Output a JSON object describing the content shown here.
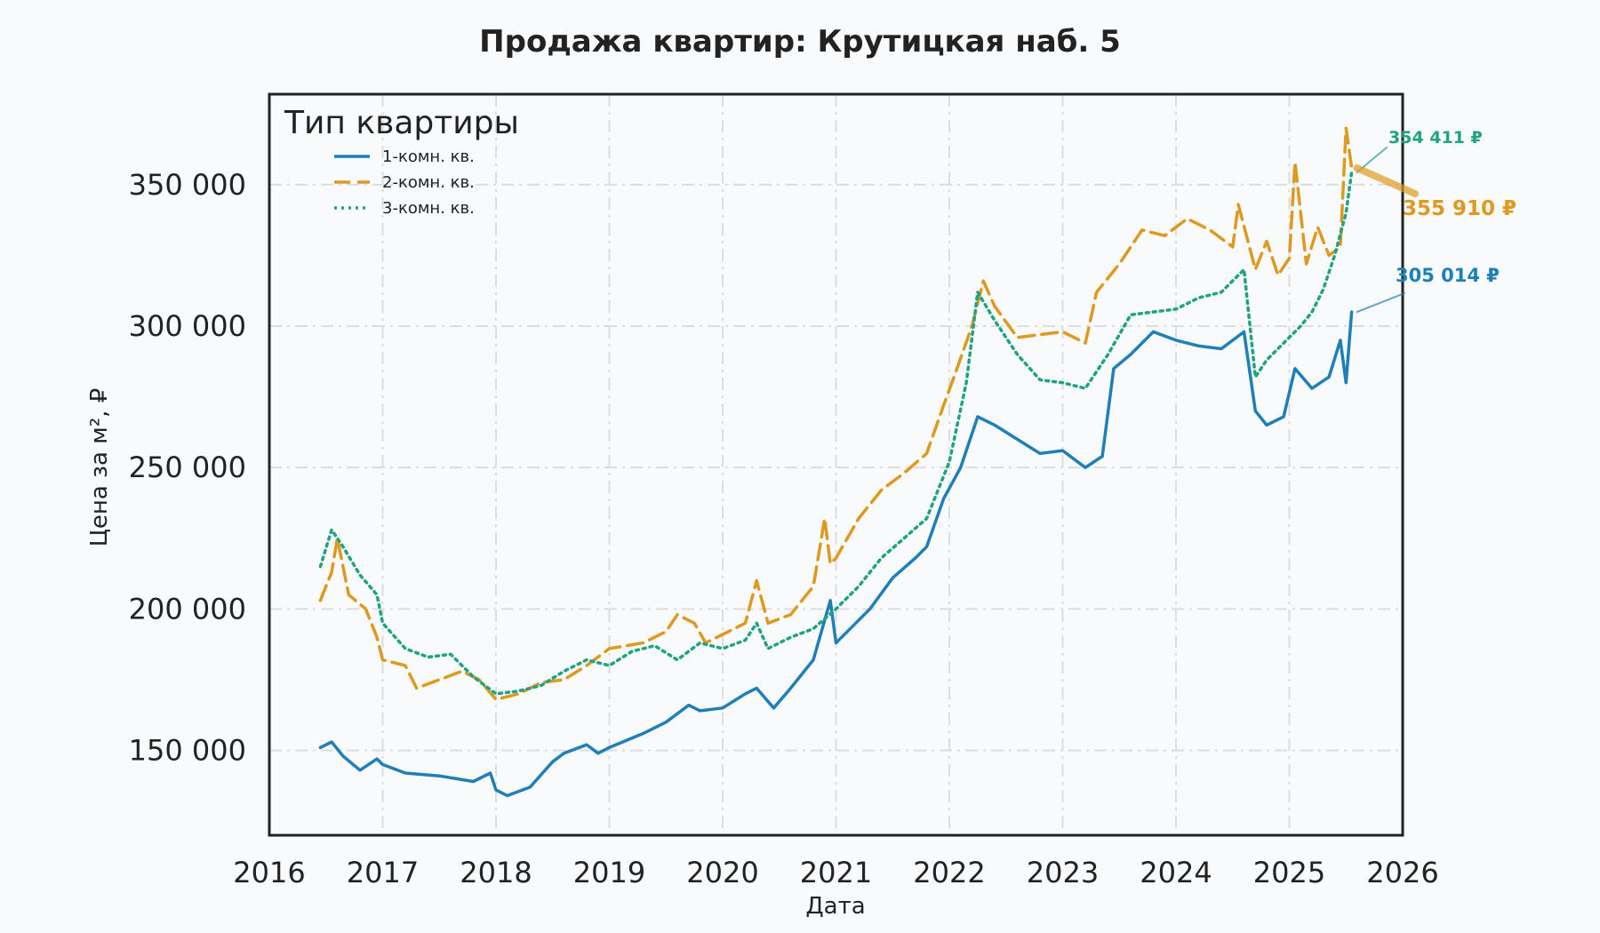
{
  "chart_data": {
    "type": "line",
    "title": "Продажа квартир: Крутицкая наб. 5",
    "xlabel": "Дата",
    "ylabel": "Цена за м², ₽",
    "xlim": [
      2016.0,
      2026.0
    ],
    "ylim": [
      120000,
      382000
    ],
    "x_ticks": [
      "2016",
      "2017",
      "2018",
      "2019",
      "2020",
      "2021",
      "2022",
      "2023",
      "2024",
      "2025",
      "2026"
    ],
    "y_ticks": [
      150000,
      200000,
      250000,
      300000,
      350000
    ],
    "y_tick_labels": [
      "150 000",
      "200 000",
      "250 000",
      "300 000",
      "350 000"
    ],
    "grid": true,
    "legend": {
      "title": "Тип квартиры",
      "position": "top-left"
    },
    "series": [
      {
        "name": "1-комн. кв.",
        "color": "#1f7fb8",
        "style": "solid",
        "x": [
          2016.45,
          2016.55,
          2016.65,
          2016.8,
          2016.95,
          2017.0,
          2017.2,
          2017.5,
          2017.8,
          2017.95,
          2018.0,
          2018.1,
          2018.3,
          2018.5,
          2018.6,
          2018.8,
          2018.9,
          2019.0,
          2019.3,
          2019.5,
          2019.7,
          2019.8,
          2020.0,
          2020.2,
          2020.3,
          2020.45,
          2020.6,
          2020.8,
          2020.95,
          2021.0,
          2021.1,
          2021.3,
          2021.5,
          2021.7,
          2021.8,
          2021.95,
          2022.1,
          2022.25,
          2022.4,
          2022.6,
          2022.8,
          2023.0,
          2023.2,
          2023.35,
          2023.45,
          2023.6,
          2023.8,
          2024.0,
          2024.2,
          2024.4,
          2024.6,
          2024.7,
          2024.8,
          2024.95,
          2025.05,
          2025.2,
          2025.35,
          2025.45,
          2025.5,
          2025.55
        ],
        "values": [
          151000,
          153000,
          148000,
          143000,
          147000,
          145000,
          142000,
          141000,
          139000,
          142000,
          136000,
          134000,
          137000,
          146000,
          149000,
          152000,
          149000,
          151000,
          156000,
          160000,
          166000,
          164000,
          165000,
          170000,
          172000,
          165000,
          172000,
          182000,
          203000,
          188000,
          192000,
          200000,
          211000,
          218000,
          222000,
          239000,
          250000,
          268000,
          265000,
          260000,
          255000,
          256000,
          250000,
          254000,
          285000,
          290000,
          298000,
          295000,
          293000,
          292000,
          298000,
          270000,
          265000,
          268000,
          285000,
          278000,
          282000,
          295000,
          280000,
          305014
        ]
      },
      {
        "name": "2-комн. кв.",
        "color": "#dd9a1f",
        "style": "dashed",
        "x": [
          2016.45,
          2016.55,
          2016.6,
          2016.7,
          2016.85,
          2016.95,
          2017.0,
          2017.2,
          2017.3,
          2017.5,
          2017.7,
          2017.85,
          2018.0,
          2018.2,
          2018.4,
          2018.6,
          2018.8,
          2019.0,
          2019.3,
          2019.5,
          2019.6,
          2019.75,
          2019.85,
          2020.0,
          2020.2,
          2020.3,
          2020.4,
          2020.6,
          2020.8,
          2020.9,
          2020.95,
          2021.0,
          2021.2,
          2021.4,
          2021.6,
          2021.8,
          2021.95,
          2022.05,
          2022.2,
          2022.3,
          2022.4,
          2022.6,
          2022.8,
          2023.0,
          2023.2,
          2023.3,
          2023.5,
          2023.7,
          2023.9,
          2024.1,
          2024.3,
          2024.5,
          2024.55,
          2024.7,
          2024.8,
          2024.9,
          2025.0,
          2025.05,
          2025.15,
          2025.25,
          2025.35,
          2025.45,
          2025.5,
          2025.55
        ],
        "values": [
          203000,
          213000,
          225000,
          205000,
          200000,
          190000,
          182000,
          180000,
          172000,
          175000,
          178000,
          175000,
          168000,
          170000,
          174000,
          175000,
          180000,
          186000,
          188000,
          192000,
          198000,
          195000,
          188000,
          191000,
          195000,
          210000,
          195000,
          198000,
          208000,
          232000,
          216000,
          218000,
          232000,
          242000,
          248000,
          255000,
          272000,
          283000,
          300000,
          316000,
          307000,
          296000,
          297000,
          298000,
          294000,
          312000,
          322000,
          334000,
          332000,
          338000,
          334000,
          328000,
          343000,
          320000,
          330000,
          318000,
          324000,
          358000,
          322000,
          335000,
          325000,
          328000,
          370000,
          355910
        ]
      },
      {
        "name": "3-комн. кв.",
        "color": "#1fa383",
        "style": "dotted",
        "x": [
          2016.45,
          2016.55,
          2016.65,
          2016.8,
          2016.95,
          2017.0,
          2017.2,
          2017.4,
          2017.6,
          2017.8,
          2018.0,
          2018.2,
          2018.4,
          2018.6,
          2018.8,
          2019.0,
          2019.2,
          2019.4,
          2019.6,
          2019.8,
          2020.0,
          2020.2,
          2020.3,
          2020.4,
          2020.6,
          2020.8,
          2021.0,
          2021.2,
          2021.4,
          2021.6,
          2021.8,
          2022.0,
          2022.15,
          2022.25,
          2022.4,
          2022.6,
          2022.8,
          2023.0,
          2023.2,
          2023.4,
          2023.6,
          2023.8,
          2024.0,
          2024.2,
          2024.4,
          2024.6,
          2024.7,
          2024.8,
          2024.95,
          2025.1,
          2025.2,
          2025.3,
          2025.4,
          2025.5,
          2025.55
        ],
        "values": [
          215000,
          228000,
          222000,
          212000,
          205000,
          195000,
          186000,
          183000,
          184000,
          176000,
          170000,
          171000,
          173000,
          178000,
          182000,
          180000,
          185000,
          187000,
          182000,
          188000,
          186000,
          189000,
          195000,
          186000,
          190000,
          193000,
          200000,
          208000,
          218000,
          225000,
          232000,
          252000,
          280000,
          312000,
          302000,
          290000,
          281000,
          280000,
          278000,
          290000,
          304000,
          305000,
          306000,
          310000,
          312000,
          320000,
          282000,
          288000,
          294000,
          300000,
          305000,
          313000,
          325000,
          340000,
          354411
        ]
      }
    ],
    "annotations": [
      {
        "label": "354 411 ₽",
        "series": "3-комн. кв.",
        "value": 354411,
        "color": "#1fa383"
      },
      {
        "label": "355 910 ₽",
        "series": "2-комн. кв.",
        "value": 355910,
        "color": "#dd9a1f"
      },
      {
        "label": "305 014 ₽",
        "series": "1-комн. кв.",
        "value": 305014,
        "color": "#1f7fb8"
      }
    ]
  }
}
